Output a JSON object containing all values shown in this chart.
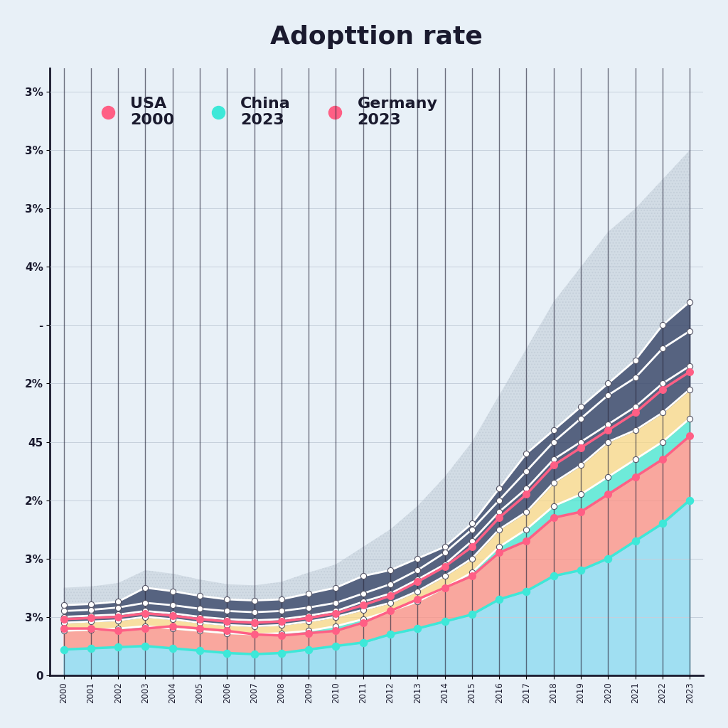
{
  "title": "Adopttion rate",
  "background_color": "#e8f0f7",
  "plot_bg": "#f0f5fa",
  "years": [
    2000,
    2001,
    2002,
    2003,
    2004,
    2005,
    2006,
    2007,
    2008,
    2009,
    2010,
    2011,
    2012,
    2013,
    2014,
    2015,
    2016,
    2017,
    2018,
    2019,
    2020,
    2021,
    2022,
    2023
  ],
  "line1_y": [
    6.0,
    6.1,
    6.3,
    7.5,
    7.2,
    6.8,
    6.5,
    6.4,
    6.5,
    7.0,
    7.5,
    8.5,
    9.0,
    10.0,
    11.0,
    13.0,
    16.0,
    19.0,
    21.0,
    23.0,
    25.0,
    27.0,
    30.0,
    32.0
  ],
  "line2_y": [
    5.5,
    5.6,
    5.8,
    6.2,
    6.0,
    5.7,
    5.5,
    5.4,
    5.5,
    5.8,
    6.2,
    7.0,
    7.8,
    9.0,
    10.5,
    12.5,
    15.0,
    17.5,
    20.0,
    22.0,
    24.0,
    25.5,
    28.0,
    29.5
  ],
  "line3_y": [
    5.0,
    5.1,
    5.2,
    5.5,
    5.3,
    5.0,
    4.8,
    4.7,
    4.8,
    5.1,
    5.5,
    6.3,
    7.0,
    8.2,
    9.5,
    11.5,
    14.0,
    16.0,
    18.5,
    20.0,
    21.5,
    23.0,
    25.0,
    26.5
  ],
  "line4_y": [
    4.5,
    4.6,
    4.7,
    5.0,
    4.8,
    4.5,
    4.3,
    4.2,
    4.3,
    4.6,
    5.0,
    5.6,
    6.2,
    7.2,
    8.5,
    10.0,
    12.5,
    14.0,
    16.5,
    18.0,
    20.0,
    21.0,
    22.5,
    24.5
  ],
  "line5_y": [
    3.8,
    3.9,
    4.0,
    4.2,
    4.0,
    3.8,
    3.6,
    3.5,
    3.6,
    3.8,
    4.2,
    4.8,
    5.5,
    6.3,
    7.5,
    8.8,
    11.0,
    12.5,
    14.5,
    15.5,
    17.0,
    18.5,
    20.0,
    22.0
  ],
  "line6_y": [
    3.2,
    3.3,
    3.4,
    3.6,
    3.4,
    3.2,
    3.0,
    2.9,
    3.0,
    3.2,
    3.5,
    4.0,
    4.8,
    5.5,
    6.5,
    7.5,
    9.5,
    10.5,
    12.5,
    13.0,
    14.5,
    16.0,
    17.5,
    19.5
  ],
  "line7_y": [
    2.8,
    2.9,
    3.0,
    3.2,
    3.0,
    2.8,
    2.6,
    2.5,
    2.6,
    2.8,
    3.1,
    3.5,
    4.2,
    4.8,
    5.6,
    6.5,
    8.0,
    9.0,
    10.5,
    11.0,
    12.0,
    13.5,
    15.0,
    17.0
  ],
  "usa_line": [
    4.0,
    4.0,
    3.8,
    4.0,
    4.2,
    4.0,
    3.8,
    3.5,
    3.4,
    3.6,
    3.8,
    4.5,
    5.5,
    6.5,
    7.5,
    8.5,
    10.5,
    11.5,
    13.5,
    14.0,
    15.5,
    17.0,
    18.5,
    20.5
  ],
  "china_line": [
    2.2,
    2.3,
    2.4,
    2.5,
    2.3,
    2.1,
    1.9,
    1.8,
    1.9,
    2.2,
    2.5,
    2.8,
    3.5,
    4.0,
    4.6,
    5.2,
    6.5,
    7.2,
    8.5,
    9.0,
    10.0,
    11.5,
    13.0,
    15.0
  ],
  "germany_line": [
    4.8,
    4.9,
    5.0,
    5.3,
    5.1,
    4.8,
    4.6,
    4.5,
    4.6,
    4.9,
    5.3,
    6.0,
    6.8,
    8.0,
    9.3,
    11.0,
    13.5,
    15.5,
    18.0,
    19.5,
    21.0,
    22.5,
    24.5,
    26.0
  ],
  "top_band_upper": [
    7.5,
    7.6,
    7.9,
    9.0,
    8.7,
    8.2,
    7.8,
    7.7,
    8.0,
    8.8,
    9.5,
    11.0,
    12.5,
    14.5,
    17.0,
    20.0,
    24.0,
    28.0,
    32.0,
    35.0,
    38.0,
    40.0,
    42.5,
    45.0
  ],
  "top_band_lower": [
    6.0,
    6.1,
    6.3,
    7.5,
    7.2,
    6.8,
    6.5,
    6.4,
    6.5,
    7.0,
    7.5,
    8.5,
    9.0,
    10.0,
    11.0,
    13.0,
    16.0,
    19.0,
    21.0,
    23.0,
    25.0,
    27.0,
    30.0,
    32.0
  ],
  "navy_color": "#3d4a6b",
  "light_blue_color": "#7ad7f0",
  "teal_color": "#45e8d0",
  "yellow_color": "#ffd97d",
  "coral_color": "#ff8f80",
  "gray_band_color": "#b8c4d0",
  "usa_color": "#ff5f85",
  "china_color": "#3de8d8",
  "germany_color": "#ff5f85",
  "white_line_color": "#ffffff",
  "grid_color": "#c5d0dc",
  "vertical_line_color": "#2a2a3e",
  "axis_color": "#1a1a2e",
  "text_color": "#1a1a2e",
  "ytick_labels": [
    "0",
    "3%",
    "3%",
    "2%",
    "45",
    "2%",
    "-",
    "4%",
    "3%",
    "3%",
    "3%"
  ],
  "ytick_positions": [
    0,
    5,
    10,
    15,
    20,
    25,
    30,
    35,
    40,
    45,
    50
  ],
  "xlim": [
    1999.5,
    2023.5
  ],
  "ylim": [
    0,
    52
  ]
}
